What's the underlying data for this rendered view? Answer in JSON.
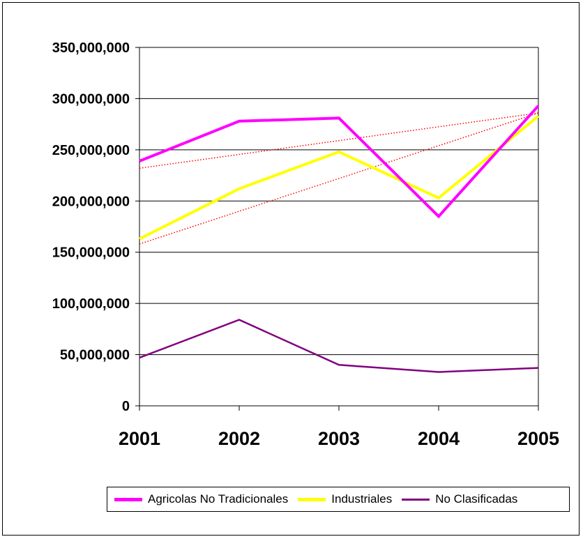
{
  "chart_data": {
    "type": "line",
    "categories": [
      "2001",
      "2002",
      "2003",
      "2004",
      "2005"
    ],
    "ylim": [
      0,
      350000000
    ],
    "yticks": [
      0,
      50000000,
      100000000,
      150000000,
      200000000,
      250000000,
      300000000,
      350000000
    ],
    "ytick_labels": [
      "0",
      "50,000,000",
      "100,000,000",
      "150,000,000",
      "200,000,000",
      "250,000,000",
      "300,000,000",
      "350,000,000"
    ],
    "grid": true,
    "legend": "bottom",
    "series": [
      {
        "name": "Agricolas No Tradicionales",
        "color": "#ff00ff",
        "values": [
          239000000,
          278000000,
          281000000,
          185000000,
          293000000
        ]
      },
      {
        "name": "Industriales",
        "color": "#ffff00",
        "values": [
          163000000,
          212000000,
          248000000,
          203000000,
          283000000
        ]
      },
      {
        "name": "No Clasificadas",
        "color": "#800080",
        "values": [
          47000000,
          84000000,
          40000000,
          33000000,
          37000000
        ]
      }
    ],
    "trendlines": [
      {
        "series": "Agricolas No Tradicionales",
        "color": "#ff0000",
        "style": "dotted",
        "from": 232000000,
        "to": 286000000
      },
      {
        "series": "Industriales",
        "color": "#ff0000",
        "style": "dotted",
        "from": 158000000,
        "to": 286000000
      }
    ]
  }
}
